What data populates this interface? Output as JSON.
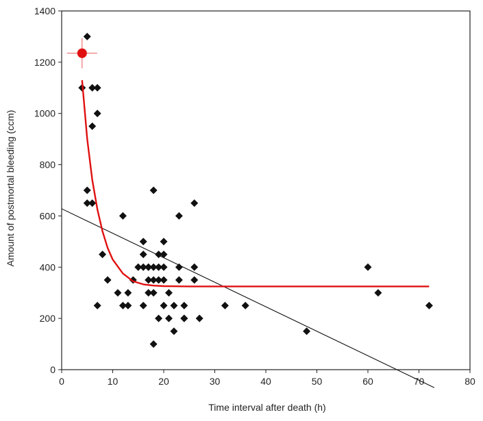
{
  "chart_data": {
    "type": "scatter",
    "title": "",
    "xlabel": "Time interval after death (h)",
    "ylabel": "Amount of postmortal bleeding (ccm)",
    "xlim": [
      0,
      80
    ],
    "ylim": [
      0,
      1400
    ],
    "xticks": [
      0,
      10,
      20,
      30,
      40,
      50,
      60,
      70,
      80
    ],
    "yticks": [
      0,
      200,
      400,
      600,
      800,
      1000,
      1200,
      1400
    ],
    "grid": false,
    "legend": "none",
    "colors": {
      "points": "#111111",
      "linear_fit": "#111111",
      "curve_fit": "#e01010",
      "marker": "#e01010"
    },
    "series": [
      {
        "kind": "points",
        "x": [
          4,
          5,
          6,
          6,
          7,
          7,
          5,
          5,
          6,
          7,
          8,
          9,
          11,
          12,
          12,
          13,
          13,
          14,
          15,
          16,
          16,
          16,
          16,
          17,
          17,
          17,
          17,
          18,
          18,
          18,
          18,
          18,
          19,
          19,
          19,
          19,
          20,
          20,
          20,
          20,
          20,
          21,
          21,
          22,
          22,
          23,
          23,
          23,
          24,
          24,
          24,
          26,
          26,
          26,
          27,
          32,
          36,
          48,
          60,
          62,
          72
        ],
        "y": [
          1100,
          1300,
          1100,
          950,
          1100,
          1000,
          700,
          650,
          650,
          250,
          450,
          350,
          300,
          600,
          250,
          250,
          300,
          350,
          400,
          500,
          450,
          400,
          250,
          400,
          350,
          300,
          400,
          700,
          400,
          350,
          300,
          100,
          450,
          400,
          350,
          200,
          500,
          450,
          400,
          350,
          250,
          300,
          200,
          250,
          150,
          600,
          400,
          350,
          250,
          200,
          200,
          650,
          400,
          350,
          200,
          250,
          250,
          150,
          400,
          300,
          250
        ]
      },
      {
        "kind": "linear_fit",
        "x": [
          0,
          73
        ],
        "y": [
          628,
          -70
        ]
      },
      {
        "kind": "curve_fit",
        "x": [
          4,
          5,
          6,
          7,
          8,
          9,
          10,
          12,
          14,
          16,
          18,
          20,
          25,
          30,
          40,
          50,
          60,
          72
        ],
        "y": [
          1130,
          900,
          740,
          625,
          540,
          475,
          430,
          375,
          345,
          333,
          328,
          326,
          325,
          325,
          325,
          325,
          325,
          325
        ]
      },
      {
        "kind": "highlight_marker",
        "x": [
          4
        ],
        "y": [
          1235
        ]
      }
    ]
  }
}
